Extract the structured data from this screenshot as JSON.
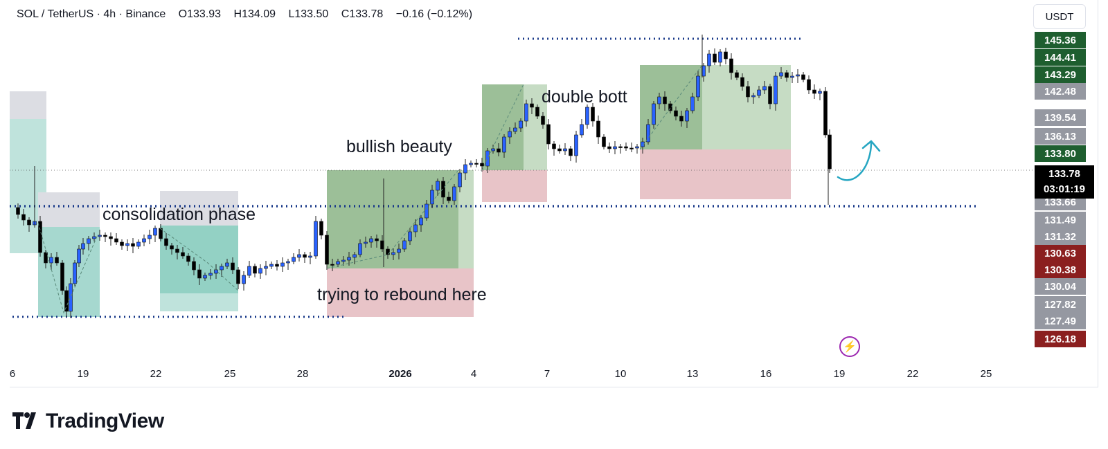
{
  "header": {
    "symbol": "SOL / TetherUS · 4h · Binance",
    "open": "O133.93",
    "high": "H134.09",
    "low": "L133.50",
    "close": "C133.78",
    "change": "−0.16 (−0.12%)"
  },
  "currency_button": "USDT",
  "price_labels": [
    {
      "text": "145.36",
      "color": "#1e5e2f"
    },
    {
      "text": "144.41",
      "color": "#1e5e2f"
    },
    {
      "text": "143.29",
      "color": "#1e5e2f"
    },
    {
      "text": "142.48",
      "color": "#9598a1"
    },
    {
      "text": "139.54",
      "color": "#9598a1"
    },
    {
      "text": "136.13",
      "color": "#9598a1"
    },
    {
      "text": "133.80",
      "color": "#1e5e2f"
    },
    {
      "text": "133.66",
      "color": "#9598a1"
    },
    {
      "text": "131.49",
      "color": "#9598a1"
    },
    {
      "text": "131.32",
      "color": "#9598a1"
    },
    {
      "text": "130.63",
      "color": "#8b1f1f"
    },
    {
      "text": "130.38",
      "color": "#8b1f1f"
    },
    {
      "text": "130.04",
      "color": "#9598a1"
    },
    {
      "text": "127.82",
      "color": "#9598a1"
    },
    {
      "text": "127.49",
      "color": "#9598a1"
    },
    {
      "text": "126.18",
      "color": "#8b1f1f"
    }
  ],
  "last_price": {
    "price": "133.78",
    "countdown": "03:01:19"
  },
  "x_ticks": [
    {
      "text": "6",
      "bold": false
    },
    {
      "text": "19",
      "bold": false
    },
    {
      "text": "22",
      "bold": false
    },
    {
      "text": "25",
      "bold": false
    },
    {
      "text": "28",
      "bold": false
    },
    {
      "text": "2026",
      "bold": true
    },
    {
      "text": "4",
      "bold": false
    },
    {
      "text": "7",
      "bold": false
    },
    {
      "text": "10",
      "bold": false
    },
    {
      "text": "13",
      "bold": false
    },
    {
      "text": "16",
      "bold": false
    },
    {
      "text": "19",
      "bold": false
    },
    {
      "text": "22",
      "bold": false
    },
    {
      "text": "25",
      "bold": false
    }
  ],
  "annotations": {
    "consolidation": "consolidation phase",
    "bullish": "bullish beauty",
    "double_bottom": "double bott",
    "rebound": "trying to rebound here"
  },
  "logo_text": "TradingView",
  "colors": {
    "up_candle": "#2962ff",
    "down_candle": "#000000",
    "dotted_line": "#1a3a8a",
    "arrow": "#26a6c2",
    "green_zone": "#8fb58f",
    "red_zone": "#e8c4c8"
  }
}
